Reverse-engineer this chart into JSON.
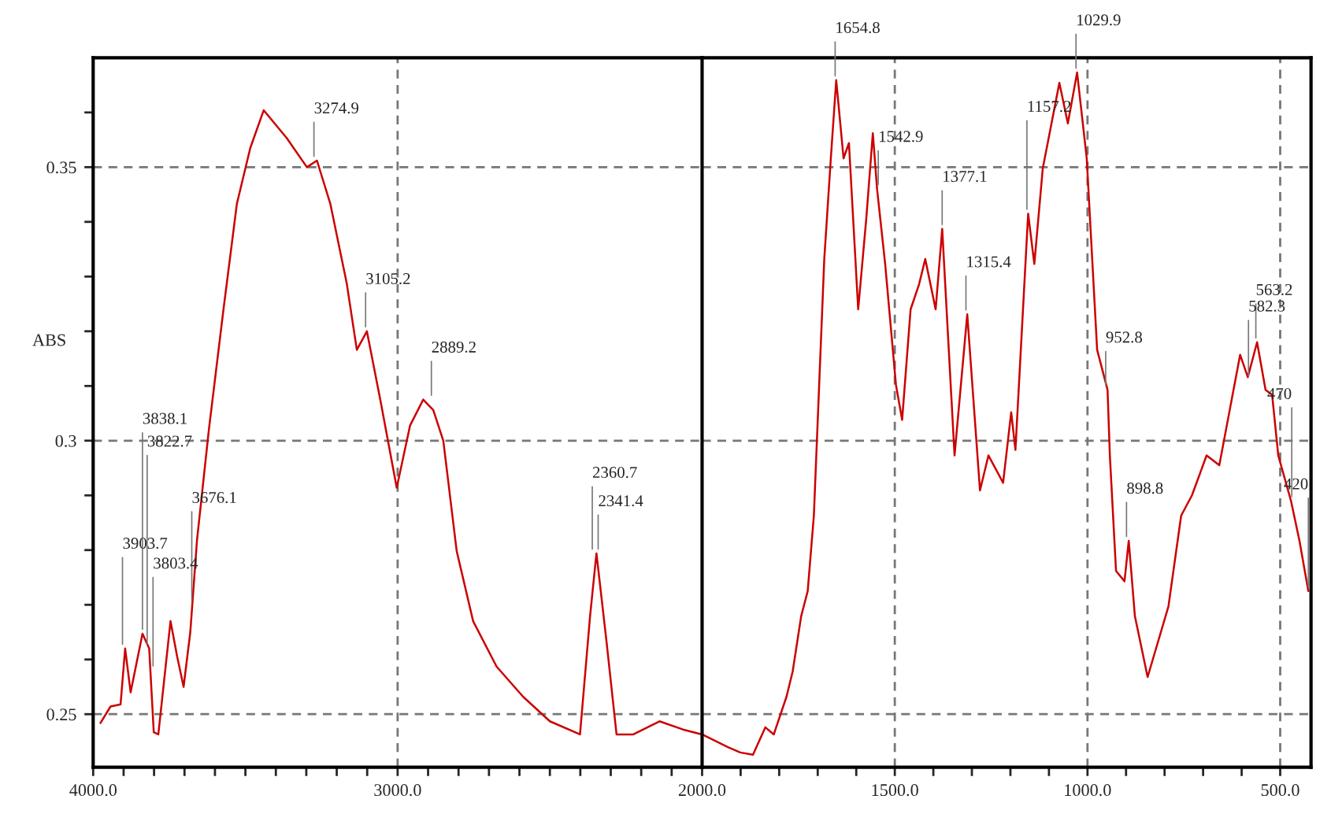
{
  "chart_data": [
    {
      "type": "line",
      "ylabel": "ABS",
      "color": "#cc0000",
      "grid": true,
      "line_style": "solid",
      "x": [
        3976,
        3943,
        3910,
        3895,
        3877,
        3838,
        3816,
        3801,
        3786,
        3746,
        3724,
        3703,
        3681,
        3659,
        3620,
        3572,
        3528,
        3484,
        3440,
        3364,
        3298,
        3265,
        3221,
        3167,
        3134,
        3101,
        3057,
        3003,
        2959,
        2916,
        2883,
        2850,
        2806,
        2752,
        2675,
        2588,
        2500,
        2401,
        2368,
        2347,
        2314,
        2281,
        2226,
        2140,
        2063,
        2000
      ],
      "values": [
        0.2484,
        0.2514,
        0.2518,
        0.262,
        0.254,
        0.2647,
        0.262,
        0.2467,
        0.2463,
        0.267,
        0.2605,
        0.255,
        0.265,
        0.2818,
        0.302,
        0.324,
        0.3433,
        0.3535,
        0.3604,
        0.3553,
        0.35,
        0.3512,
        0.3433,
        0.3287,
        0.3166,
        0.32,
        0.3075,
        0.2914,
        0.3028,
        0.3075,
        0.3056,
        0.3,
        0.2798,
        0.267,
        0.2587,
        0.2532,
        0.2487,
        0.2463,
        0.2679,
        0.2794,
        0.2633,
        0.2463,
        0.2463,
        0.2487,
        0.2472,
        0.2463
      ],
      "xlim": [
        4000,
        2000
      ],
      "xticks": [
        {
          "value": 4000,
          "label": "4000.0"
        },
        {
          "value": 3900,
          "label": null
        },
        {
          "value": 3800,
          "label": null
        },
        {
          "value": 3700,
          "label": null
        },
        {
          "value": 3600,
          "label": null
        },
        {
          "value": 3500,
          "label": null
        },
        {
          "value": 3400,
          "label": null
        },
        {
          "value": 3300,
          "label": null
        },
        {
          "value": 3200,
          "label": null
        },
        {
          "value": 3100,
          "label": null
        },
        {
          "value": 3000,
          "label": "3000.0"
        },
        {
          "value": 2900,
          "label": null
        },
        {
          "value": 2800,
          "label": null
        },
        {
          "value": 2700,
          "label": null
        },
        {
          "value": 2600,
          "label": null
        },
        {
          "value": 2500,
          "label": null
        },
        {
          "value": 2400,
          "label": null
        },
        {
          "value": 2300,
          "label": null
        },
        {
          "value": 2200,
          "label": null
        },
        {
          "value": 2100,
          "label": null
        },
        {
          "value": 2000,
          "label": "2000.0"
        }
      ],
      "ylim": [
        0.2403,
        0.37
      ],
      "yticks": [
        {
          "value": 0.25,
          "label": "0.25"
        },
        {
          "value": 0.26,
          "label": null
        },
        {
          "value": 0.27,
          "label": null
        },
        {
          "value": 0.28,
          "label": null
        },
        {
          "value": 0.29,
          "label": null
        },
        {
          "value": 0.3,
          "label": "0.3"
        },
        {
          "value": 0.31,
          "label": null
        },
        {
          "value": 0.32,
          "label": null
        },
        {
          "value": 0.33,
          "label": null
        },
        {
          "value": 0.34,
          "label": null
        },
        {
          "value": 0.35,
          "label": "0.35"
        },
        {
          "value": 0.36,
          "label": null
        }
      ],
      "annotations": [
        {
          "text": "3903.7",
          "x": 3903.7,
          "y": 0.262
        },
        {
          "text": "3838.1",
          "x": 3838.1,
          "y": 0.2647
        },
        {
          "text": "3822.7",
          "x": 3822.7,
          "y": 0.262
        },
        {
          "text": "3803.4",
          "x": 3803.4,
          "y": 0.258
        },
        {
          "text": "3676.1",
          "x": 3676.1,
          "y": 0.27
        },
        {
          "text": "3274.9",
          "x": 3274.9,
          "y": 0.3512
        },
        {
          "text": "3105.2",
          "x": 3105.2,
          "y": 0.32
        },
        {
          "text": "2889.2",
          "x": 2889.2,
          "y": 0.3075
        },
        {
          "text": "2360.7",
          "x": 2360.7,
          "y": 0.2794
        },
        {
          "text": "2341.4",
          "x": 2341.4,
          "y": 0.2794
        }
      ]
    },
    {
      "type": "line",
      "color": "#cc0000",
      "grid": true,
      "line_style": "solid",
      "tick_labels": "x",
      "x": [
        2000,
        1934,
        1901,
        1868,
        1836,
        1814,
        1781,
        1765,
        1743,
        1726,
        1710,
        1683,
        1666,
        1652,
        1633,
        1619,
        1595,
        1574,
        1557,
        1546,
        1525,
        1497,
        1481,
        1459,
        1437,
        1421,
        1394,
        1377,
        1345,
        1312,
        1279,
        1257,
        1219,
        1198,
        1187,
        1154,
        1138,
        1116,
        1073,
        1051,
        1027,
        1002,
        975,
        948,
        942,
        926,
        904,
        893,
        877,
        844,
        790,
        757,
        729,
        691,
        658,
        631,
        604,
        584,
        560,
        538,
        521,
        505,
        472,
        450,
        427
      ],
      "values": [
        0.2463,
        0.244,
        0.243,
        0.2426,
        0.2476,
        0.2463,
        0.2532,
        0.2578,
        0.2679,
        0.2725,
        0.2863,
        0.3332,
        0.3516,
        0.3659,
        0.3516,
        0.3544,
        0.324,
        0.3406,
        0.3562,
        0.346,
        0.3323,
        0.3102,
        0.3038,
        0.324,
        0.3286,
        0.3332,
        0.324,
        0.3387,
        0.2973,
        0.3231,
        0.2909,
        0.2973,
        0.2923,
        0.3052,
        0.2983,
        0.3415,
        0.3323,
        0.3498,
        0.3654,
        0.358,
        0.3673,
        0.3516,
        0.3166,
        0.3093,
        0.2973,
        0.2762,
        0.2743,
        0.2817,
        0.2679,
        0.2568,
        0.2697,
        0.2863,
        0.29,
        0.2973,
        0.2955,
        0.3056,
        0.3157,
        0.3116,
        0.318,
        0.3093,
        0.3084,
        0.2973,
        0.289,
        0.2817,
        0.2725
      ],
      "xlim": [
        2000,
        420
      ],
      "xticks": [
        {
          "value": 1900,
          "label": null
        },
        {
          "value": 1800,
          "label": null
        },
        {
          "value": 1700,
          "label": null
        },
        {
          "value": 1600,
          "label": null
        },
        {
          "value": 1500,
          "label": "1500.0"
        },
        {
          "value": 1400,
          "label": null
        },
        {
          "value": 1300,
          "label": null
        },
        {
          "value": 1200,
          "label": null
        },
        {
          "value": 1100,
          "label": null
        },
        {
          "value": 1000,
          "label": "1000.0"
        },
        {
          "value": 900,
          "label": null
        },
        {
          "value": 800,
          "label": null
        },
        {
          "value": 700,
          "label": null
        },
        {
          "value": 600,
          "label": null
        },
        {
          "value": 500,
          "label": "500.0"
        }
      ],
      "ylim": [
        0.2403,
        0.37
      ],
      "annotations": [
        {
          "text": "1654.8",
          "x": 1654.8,
          "y": 0.3659
        },
        {
          "text": "1542.9",
          "x": 1542.9,
          "y": 0.346
        },
        {
          "text": "1377.1",
          "x": 1377.1,
          "y": 0.3387
        },
        {
          "text": "1315.4",
          "x": 1315.4,
          "y": 0.3231
        },
        {
          "text": "1157.2",
          "x": 1157.2,
          "y": 0.3415
        },
        {
          "text": "1029.9",
          "x": 1029.9,
          "y": 0.3673
        },
        {
          "text": "952.8",
          "x": 952.8,
          "y": 0.3093
        },
        {
          "text": "898.8",
          "x": 898.8,
          "y": 0.2817
        },
        {
          "text": "563.2",
          "x": 563.2,
          "y": 0.318
        },
        {
          "text": "582.3",
          "x": 582.3,
          "y": 0.311
        },
        {
          "text": "470",
          "x": 470,
          "y": 0.289
        },
        {
          "text": "420",
          "x": 427,
          "y": 0.2725
        }
      ]
    }
  ]
}
